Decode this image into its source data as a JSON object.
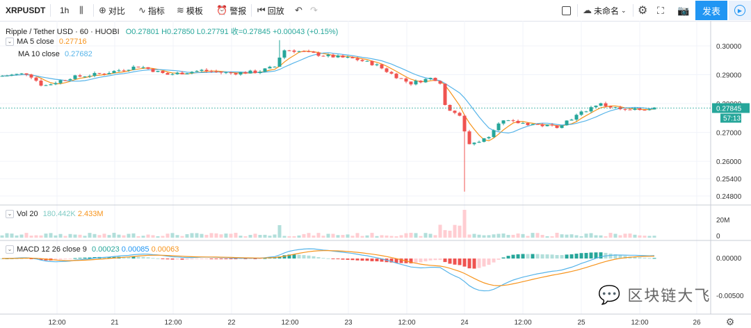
{
  "toolbar": {
    "symbol": "XRPUSDT",
    "interval": "1h",
    "compare": "对比",
    "indicators": "指标",
    "templates": "模板",
    "alert": "警报",
    "replay": "回放",
    "layout_name": "未命名",
    "publish": "发表"
  },
  "header": {
    "title": "Ripple / Tether USD · 60 · HUOBI",
    "ohlc_o": "O0.27801",
    "ohlc_h": "H0.27850",
    "ohlc_l": "L0.27791",
    "ohlc_c": "收=0.27845",
    "change": "+0.00043 (+0.15%)"
  },
  "ma5": {
    "label": "MA 5 close",
    "value": "0.27716",
    "color": "#f7931a"
  },
  "ma10": {
    "label": "MA 10 close",
    "value": "0.27682",
    "color": "#56b4e9"
  },
  "vol": {
    "label": "Vol 20",
    "v1": "180.442K",
    "v2": "2.433M",
    "axis_top": "20M",
    "axis_zero": "0"
  },
  "macd": {
    "label": "MACD 12 26 close 9",
    "v1": "0.00023",
    "v2": "0.00085",
    "v3": "0.00063",
    "axis_zero": "0.00000",
    "axis_low": "-0.00500"
  },
  "price_axis": [
    "0.30000",
    "0.29000",
    "0.28000",
    "0.27000",
    "0.26000",
    "0.25400",
    "0.24800"
  ],
  "price_tag": "0.27845",
  "countdown": "57:13",
  "time_axis": [
    "12:00",
    "21",
    "12:00",
    "22",
    "12:00",
    "23",
    "12:00",
    "24",
    "12:00",
    "25",
    "12:00",
    "26"
  ],
  "watermark": "区块链大飞",
  "colors": {
    "up": "#26a69a",
    "down": "#ef5350",
    "grid": "#f0f3fa",
    "accent": "#2196f3"
  }
}
